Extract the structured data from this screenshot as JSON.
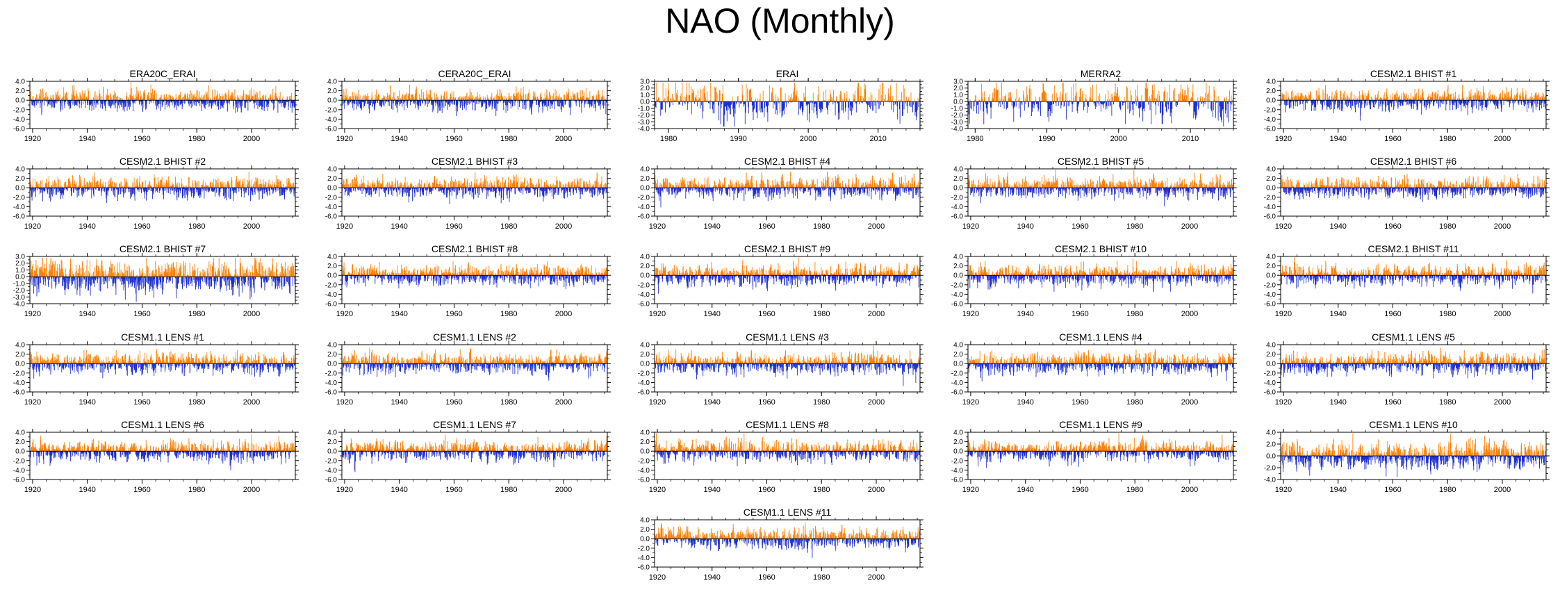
{
  "title": "NAO (Monthly)",
  "colors": {
    "positive": "#ff7f00",
    "negative": "#1f2fd0",
    "axis": "#000000"
  },
  "chart_data": [
    {
      "type": "bar",
      "title": "ERA20C_ERAI",
      "x_range": [
        1919,
        2016
      ],
      "ylim": [
        -6,
        4
      ],
      "yticks": [
        "4.0",
        "2.0",
        "0.0",
        "-2.0",
        "-4.0",
        "-6.0"
      ],
      "xticks": [
        "1920",
        "1940",
        "1960",
        "1980",
        "2000"
      ],
      "amplitude": 1.0
    },
    {
      "type": "bar",
      "title": "CERA20C_ERAI",
      "x_range": [
        1919,
        2016
      ],
      "ylim": [
        -6,
        4
      ],
      "yticks": [
        "4.0",
        "2.0",
        "0.0",
        "-2.0",
        "-4.0",
        "-6.0"
      ],
      "xticks": [
        "1920",
        "1940",
        "1960",
        "1980",
        "2000"
      ],
      "amplitude": 1.0
    },
    {
      "type": "bar",
      "title": "ERAI",
      "x_range": [
        1978,
        2016
      ],
      "ylim": [
        -4,
        3
      ],
      "yticks": [
        "3.0",
        "2.0",
        "1.0",
        "0.0",
        "-1.0",
        "-2.0",
        "-3.0",
        "-4.0"
      ],
      "xticks": [
        "1980",
        "1990",
        "2000",
        "2010"
      ],
      "amplitude": 1.3
    },
    {
      "type": "bar",
      "title": "MERRA2",
      "x_range": [
        1979,
        2016
      ],
      "ylim": [
        -4,
        3
      ],
      "yticks": [
        "3.0",
        "2.0",
        "1.0",
        "0.0",
        "-1.0",
        "-2.0",
        "-3.0",
        "-4.0"
      ],
      "xticks": [
        "1980",
        "1990",
        "2000",
        "2010"
      ],
      "amplitude": 1.3
    },
    {
      "type": "bar",
      "title": "CESM2.1 BHIST #1",
      "x_range": [
        1919,
        2016
      ],
      "ylim": [
        -6,
        4
      ],
      "yticks": [
        "4.0",
        "2.0",
        "0.0",
        "-2.0",
        "-4.0",
        "-6.0"
      ],
      "xticks": [
        "1920",
        "1940",
        "1960",
        "1980",
        "2000"
      ],
      "amplitude": 1.0
    },
    {
      "type": "bar",
      "title": "CESM2.1 BHIST #2",
      "x_range": [
        1919,
        2016
      ],
      "ylim": [
        -6,
        4
      ],
      "yticks": [
        "4.0",
        "2.0",
        "0.0",
        "-2.0",
        "-4.0",
        "-6.0"
      ],
      "xticks": [
        "1920",
        "1940",
        "1960",
        "1980",
        "2000"
      ],
      "amplitude": 1.0
    },
    {
      "type": "bar",
      "title": "CESM2.1 BHIST #3",
      "x_range": [
        1919,
        2016
      ],
      "ylim": [
        -6,
        4
      ],
      "yticks": [
        "4.0",
        "2.0",
        "0.0",
        "-2.0",
        "-4.0",
        "-6.0"
      ],
      "xticks": [
        "1920",
        "1940",
        "1960",
        "1980",
        "2000"
      ],
      "amplitude": 1.0
    },
    {
      "type": "bar",
      "title": "CESM2.1 BHIST #4",
      "x_range": [
        1919,
        2016
      ],
      "ylim": [
        -6,
        4
      ],
      "yticks": [
        "4.0",
        "2.0",
        "0.0",
        "-2.0",
        "-4.0",
        "-6.0"
      ],
      "xticks": [
        "1920",
        "1940",
        "1960",
        "1980",
        "2000"
      ],
      "amplitude": 1.0
    },
    {
      "type": "bar",
      "title": "CESM2.1 BHIST #5",
      "x_range": [
        1919,
        2016
      ],
      "ylim": [
        -6,
        4
      ],
      "yticks": [
        "4.0",
        "2.0",
        "0.0",
        "-2.0",
        "-4.0",
        "-6.0"
      ],
      "xticks": [
        "1920",
        "1940",
        "1960",
        "1980",
        "2000"
      ],
      "amplitude": 1.0
    },
    {
      "type": "bar",
      "title": "CESM2.1 BHIST #6",
      "x_range": [
        1919,
        2016
      ],
      "ylim": [
        -6,
        4
      ],
      "yticks": [
        "4.0",
        "2.0",
        "0.0",
        "-2.0",
        "-4.0",
        "-6.0"
      ],
      "xticks": [
        "1920",
        "1940",
        "1960",
        "1980",
        "2000"
      ],
      "amplitude": 1.0
    },
    {
      "type": "bar",
      "title": "CESM2.1 BHIST #7",
      "x_range": [
        1919,
        2016
      ],
      "ylim": [
        -4,
        3
      ],
      "yticks": [
        "3.0",
        "2.0",
        "1.0",
        "0.0",
        "-1.0",
        "-2.0",
        "-3.0",
        "-4.0"
      ],
      "xticks": [
        "1920",
        "1940",
        "1960",
        "1980",
        "2000"
      ],
      "amplitude": 1.1
    },
    {
      "type": "bar",
      "title": "CESM2.1 BHIST #8",
      "x_range": [
        1919,
        2016
      ],
      "ylim": [
        -6,
        4
      ],
      "yticks": [
        "4.0",
        "2.0",
        "0.0",
        "-2.0",
        "-4.0",
        "-6.0"
      ],
      "xticks": [
        "1920",
        "1940",
        "1960",
        "1980",
        "2000"
      ],
      "amplitude": 1.0
    },
    {
      "type": "bar",
      "title": "CESM2.1 BHIST #9",
      "x_range": [
        1919,
        2016
      ],
      "ylim": [
        -6,
        4
      ],
      "yticks": [
        "4.0",
        "2.0",
        "0.0",
        "-2.0",
        "-4.0",
        "-6.0"
      ],
      "xticks": [
        "1920",
        "1940",
        "1960",
        "1980",
        "2000"
      ],
      "amplitude": 1.0
    },
    {
      "type": "bar",
      "title": "CESM2.1 BHIST #10",
      "x_range": [
        1919,
        2016
      ],
      "ylim": [
        -6,
        4
      ],
      "yticks": [
        "4.0",
        "2.0",
        "0.0",
        "-2.0",
        "-4.0",
        "-6.0"
      ],
      "xticks": [
        "1920",
        "1940",
        "1960",
        "1980",
        "2000"
      ],
      "amplitude": 1.0
    },
    {
      "type": "bar",
      "title": "CESM2.1 BHIST #11",
      "x_range": [
        1919,
        2016
      ],
      "ylim": [
        -6,
        4
      ],
      "yticks": [
        "4.0",
        "2.0",
        "0.0",
        "-2.0",
        "-4.0",
        "-6.0"
      ],
      "xticks": [
        "1920",
        "1940",
        "1960",
        "1980",
        "2000"
      ],
      "amplitude": 1.0
    },
    {
      "type": "bar",
      "title": "CESM1.1 LENS #1",
      "x_range": [
        1919,
        2016
      ],
      "ylim": [
        -6,
        4
      ],
      "yticks": [
        "4.0",
        "2.0",
        "0.0",
        "-2.0",
        "-4.0",
        "-6.0"
      ],
      "xticks": [
        "1920",
        "1940",
        "1960",
        "1980",
        "2000"
      ],
      "amplitude": 1.0
    },
    {
      "type": "bar",
      "title": "CESM1.1 LENS #2",
      "x_range": [
        1919,
        2016
      ],
      "ylim": [
        -6,
        4
      ],
      "yticks": [
        "4.0",
        "2.0",
        "0.0",
        "-2.0",
        "-4.0",
        "-6.0"
      ],
      "xticks": [
        "1920",
        "1940",
        "1960",
        "1980",
        "2000"
      ],
      "amplitude": 1.0
    },
    {
      "type": "bar",
      "title": "CESM1.1 LENS #3",
      "x_range": [
        1919,
        2016
      ],
      "ylim": [
        -6,
        4
      ],
      "yticks": [
        "4.0",
        "2.0",
        "0.0",
        "-2.0",
        "-4.0",
        "-6.0"
      ],
      "xticks": [
        "1920",
        "1940",
        "1960",
        "1980",
        "2000"
      ],
      "amplitude": 1.0
    },
    {
      "type": "bar",
      "title": "CESM1.1 LENS #4",
      "x_range": [
        1919,
        2016
      ],
      "ylim": [
        -6,
        4
      ],
      "yticks": [
        "4.0",
        "2.0",
        "0.0",
        "-2.0",
        "-4.0",
        "-6.0"
      ],
      "xticks": [
        "1920",
        "1940",
        "1960",
        "1980",
        "2000"
      ],
      "amplitude": 1.0
    },
    {
      "type": "bar",
      "title": "CESM1.1 LENS #5",
      "x_range": [
        1919,
        2016
      ],
      "ylim": [
        -6,
        4
      ],
      "yticks": [
        "4.0",
        "2.0",
        "0.0",
        "-2.0",
        "-4.0",
        "-6.0"
      ],
      "xticks": [
        "1920",
        "1940",
        "1960",
        "1980",
        "2000"
      ],
      "amplitude": 1.0
    },
    {
      "type": "bar",
      "title": "CESM1.1 LENS #6",
      "x_range": [
        1919,
        2016
      ],
      "ylim": [
        -6,
        4
      ],
      "yticks": [
        "4.0",
        "2.0",
        "0.0",
        "-2.0",
        "-4.0",
        "-6.0"
      ],
      "xticks": [
        "1920",
        "1940",
        "1960",
        "1980",
        "2000"
      ],
      "amplitude": 1.0
    },
    {
      "type": "bar",
      "title": "CESM1.1 LENS #7",
      "x_range": [
        1919,
        2016
      ],
      "ylim": [
        -6,
        4
      ],
      "yticks": [
        "4.0",
        "2.0",
        "0.0",
        "-2.0",
        "-4.0",
        "-6.0"
      ],
      "xticks": [
        "1920",
        "1940",
        "1960",
        "1980",
        "2000"
      ],
      "amplitude": 1.0
    },
    {
      "type": "bar",
      "title": "CESM1.1 LENS #8",
      "x_range": [
        1919,
        2016
      ],
      "ylim": [
        -6,
        4
      ],
      "yticks": [
        "4.0",
        "2.0",
        "0.0",
        "-2.0",
        "-4.0",
        "-6.0"
      ],
      "xticks": [
        "1920",
        "1940",
        "1960",
        "1980",
        "2000"
      ],
      "amplitude": 1.0
    },
    {
      "type": "bar",
      "title": "CESM1.1 LENS #9",
      "x_range": [
        1919,
        2016
      ],
      "ylim": [
        -6,
        4
      ],
      "yticks": [
        "4.0",
        "2.0",
        "0.0",
        "-2.0",
        "-4.0",
        "-6.0"
      ],
      "xticks": [
        "1920",
        "1940",
        "1960",
        "1980",
        "2000"
      ],
      "amplitude": 1.0
    },
    {
      "type": "bar",
      "title": "CESM1.1 LENS #10",
      "x_range": [
        1919,
        2016
      ],
      "ylim": [
        -4,
        4
      ],
      "yticks": [
        "4.0",
        "2.0",
        "0.0",
        "-2.0",
        "-4.0"
      ],
      "xticks": [
        "1920",
        "1940",
        "1960",
        "1980",
        "2000"
      ],
      "amplitude": 1.0
    },
    {
      "type": "bar",
      "title": "CESM1.1 LENS #11",
      "x_range": [
        1919,
        2016
      ],
      "ylim": [
        -6,
        4
      ],
      "yticks": [
        "4.0",
        "2.0",
        "0.0",
        "-2.0",
        "-4.0",
        "-6.0"
      ],
      "xticks": [
        "1920",
        "1940",
        "1960",
        "1980",
        "2000"
      ],
      "amplitude": 1.0
    }
  ]
}
